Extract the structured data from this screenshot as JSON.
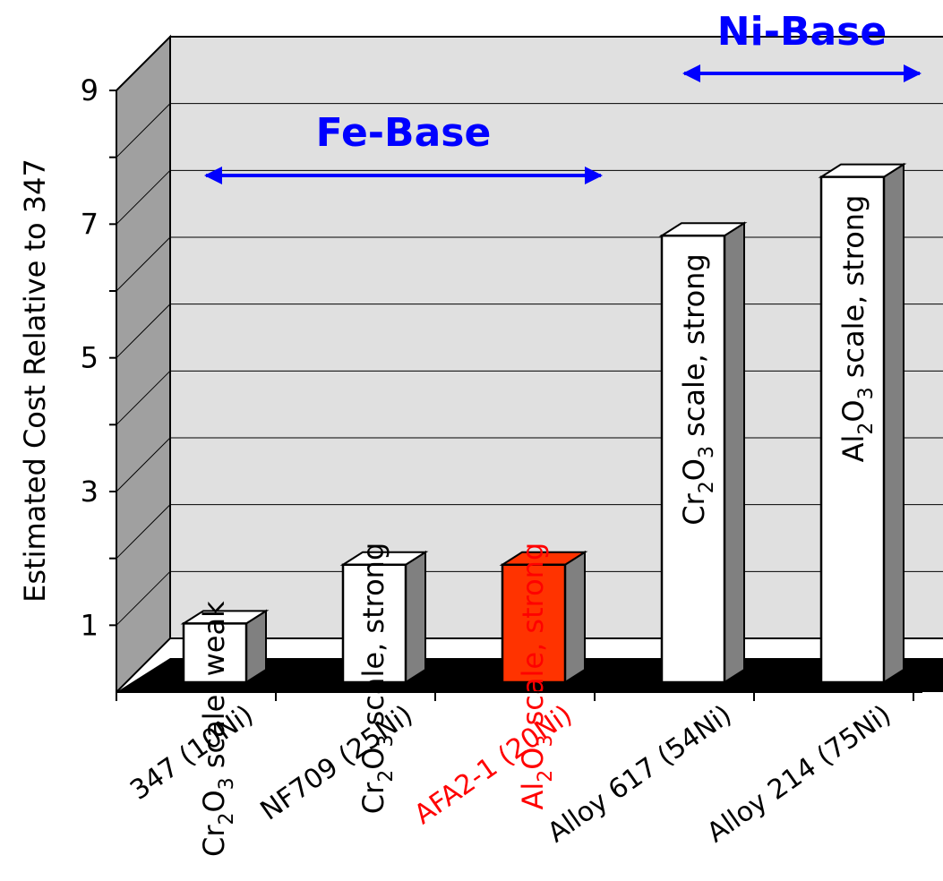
{
  "chart_data": {
    "type": "bar",
    "ylabel": "Estimated Cost Relative to 347",
    "ylim": [
      0,
      9
    ],
    "yticks": [
      "1",
      "3",
      "5",
      "7",
      "9"
    ],
    "categories": [
      "347 (10Ni)",
      "NF709 (25Ni)",
      "AFA2-1 (20Ni)",
      "Alloy 617 (54Ni)",
      "Alloy 214 (75Ni)"
    ],
    "values": [
      1,
      2,
      2,
      7.6,
      8.6
    ],
    "bar_labels": [
      {
        "oxide": "Cr",
        "sub1": "2",
        "mid": "O",
        "sub2": "3",
        "rest": " scale,  weak"
      },
      {
        "oxide": "Cr",
        "sub1": "2",
        "mid": "O",
        "sub2": "3",
        "rest": " scale,  strong"
      },
      {
        "oxide": "Al",
        "sub1": "2",
        "mid": "O",
        "sub2": "3",
        "rest": " scale,  strong"
      },
      {
        "oxide": "Cr",
        "sub1": "2",
        "mid": "O",
        "sub2": "3",
        "rest": " scale,  strong"
      },
      {
        "oxide": "Al",
        "sub1": "2",
        "mid": "O",
        "sub2": "3",
        "rest": " scale,  strong"
      }
    ],
    "highlight_index": 2,
    "groups": [
      {
        "label": "Fe-Base",
        "from_index": 0,
        "to_index": 2
      },
      {
        "label": "Ni-Base",
        "from_index": 3,
        "to_index": 4
      }
    ],
    "grid": true,
    "legend": "none",
    "colors": {
      "bar": "#ffffff",
      "highlight_bar": "#ff3300",
      "bar_side": "#808080",
      "highlight_text": "#ff0000",
      "group_text": "#0000ff",
      "arrow": "#0000ff",
      "wall": "#e0e0e0",
      "side_wall": "#a0a0a0",
      "floor": "#000000"
    }
  }
}
